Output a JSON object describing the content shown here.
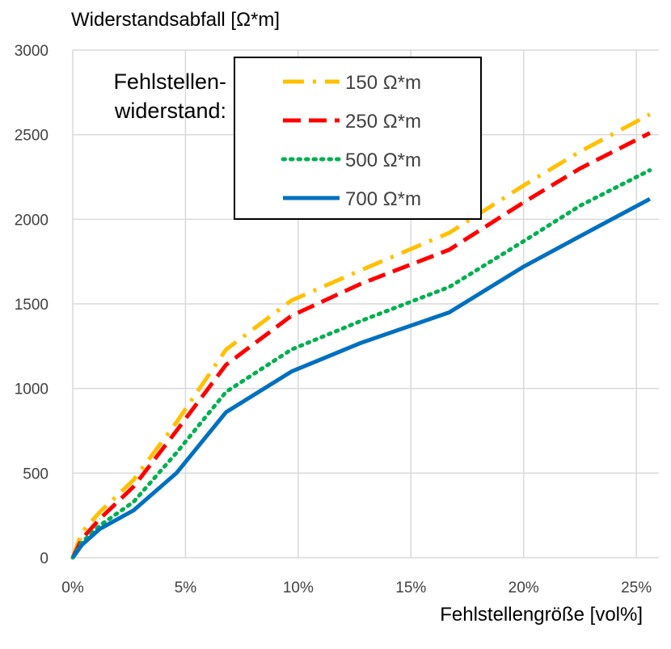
{
  "chart_data": {
    "type": "line",
    "title": "",
    "ylabel": "Widerstandsabfall [Ω*m]",
    "xlabel": "Fehlstellengröße [vol%]",
    "xlim": [
      0,
      26
    ],
    "ylim": [
      0,
      3000
    ],
    "x_ticks": [
      0,
      5,
      10,
      15,
      20,
      25
    ],
    "x_tick_labels": [
      "0%",
      "5%",
      "10%",
      "15%",
      "20%",
      "25%"
    ],
    "y_ticks": [
      0,
      500,
      1000,
      1500,
      2000,
      2500,
      3000
    ],
    "y_tick_labels": [
      "0",
      "500",
      "1000",
      "1500",
      "2000",
      "2500",
      "3000"
    ],
    "grid": true,
    "legend": {
      "title": "Fehlstellen-\nwiderstand:",
      "placement": "top-center"
    },
    "series": [
      {
        "name": "150 Ω*m",
        "color": "#FFC000",
        "dash": "dash-dot",
        "x": [
          0,
          0.4,
          1.2,
          2.7,
          4.6,
          6.8,
          9.7,
          12.8,
          16.7,
          20.0,
          22.5,
          25.6
        ],
        "y": [
          0,
          150,
          270,
          460,
          800,
          1230,
          1520,
          1700,
          1920,
          2200,
          2400,
          2620
        ]
      },
      {
        "name": "250 Ω*m",
        "color": "#FF0000",
        "dash": "dashed",
        "x": [
          0,
          0.4,
          1.2,
          2.7,
          4.6,
          6.8,
          9.7,
          12.8,
          16.7,
          20.0,
          22.5,
          25.6
        ],
        "y": [
          0,
          110,
          230,
          420,
          750,
          1140,
          1430,
          1620,
          1820,
          2100,
          2300,
          2510
        ]
      },
      {
        "name": "500 Ω*m",
        "color": "#00B050",
        "dash": "dotted",
        "x": [
          0,
          0.4,
          1.2,
          2.7,
          4.6,
          6.8,
          9.7,
          12.8,
          16.7,
          20.0,
          22.5,
          25.6
        ],
        "y": [
          0,
          90,
          190,
          330,
          620,
          980,
          1230,
          1400,
          1600,
          1870,
          2080,
          2290
        ]
      },
      {
        "name": "700 Ω*m",
        "color": "#0070C0",
        "dash": "solid",
        "x": [
          0,
          0.4,
          1.2,
          2.7,
          4.6,
          6.8,
          9.7,
          12.8,
          16.7,
          20.0,
          22.5,
          25.6
        ],
        "y": [
          0,
          75,
          170,
          280,
          500,
          860,
          1100,
          1270,
          1450,
          1720,
          1900,
          2120
        ]
      }
    ]
  }
}
